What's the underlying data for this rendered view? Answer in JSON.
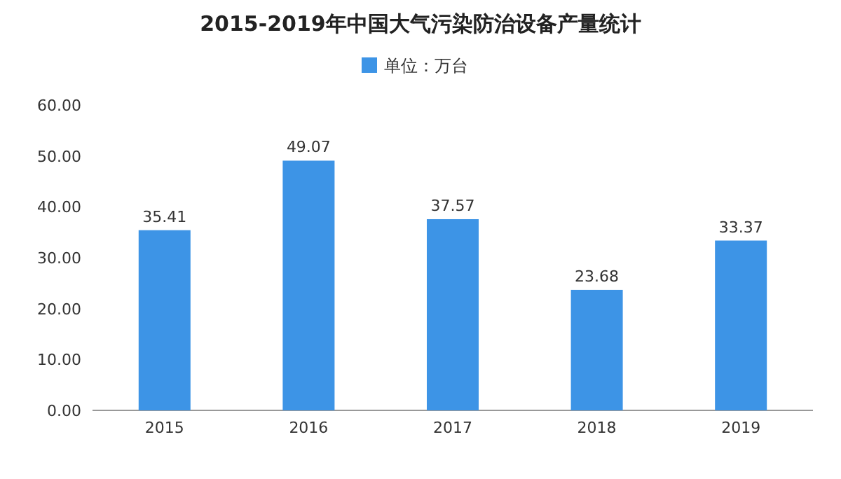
{
  "chart_data": {
    "type": "bar",
    "title": "2015-2019年中国大气污染防治设备产量统计",
    "categories": [
      "2015",
      "2016",
      "2017",
      "2018",
      "2019"
    ],
    "series": [
      {
        "name": "单位：万台",
        "color": "#3d94e6",
        "values": [
          35.41,
          49.07,
          37.57,
          23.68,
          33.37
        ]
      }
    ],
    "ylim": [
      0,
      60
    ],
    "yticks": [
      {
        "value": 0,
        "label": "0.00"
      },
      {
        "value": 10,
        "label": "10.00"
      },
      {
        "value": 20,
        "label": "20.00"
      },
      {
        "value": 30,
        "label": "30.00"
      },
      {
        "value": 40,
        "label": "40.00"
      },
      {
        "value": 50,
        "label": "50.00"
      },
      {
        "value": 60,
        "label": "60.00"
      }
    ],
    "data_labels": true,
    "legend": "top"
  }
}
